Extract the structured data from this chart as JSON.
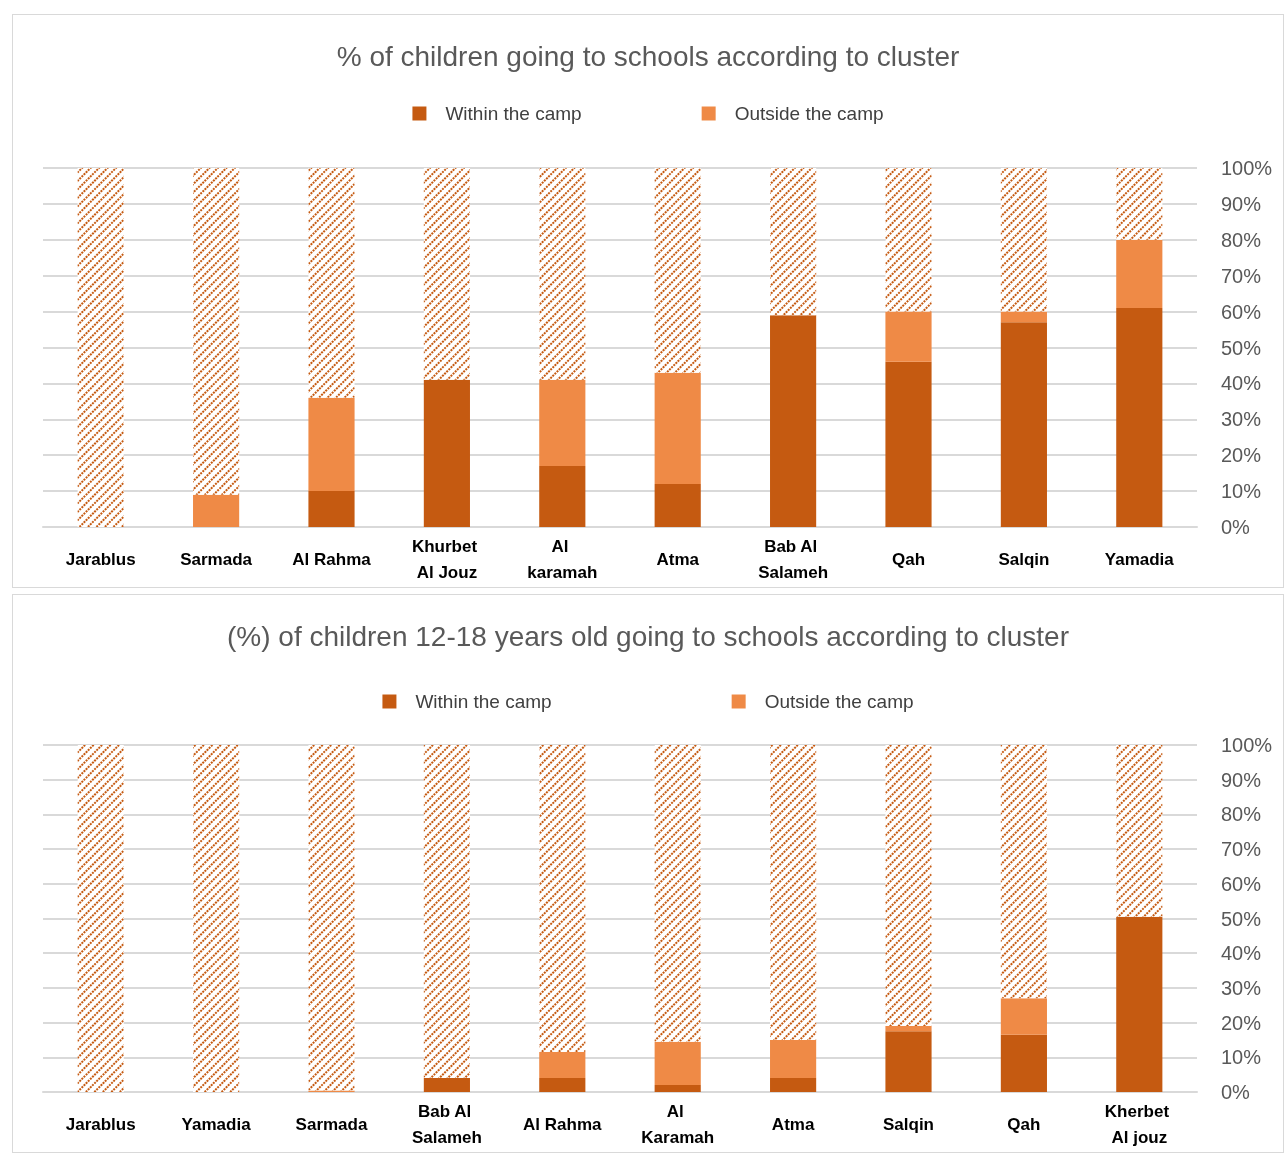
{
  "chart_data": [
    {
      "type": "bar",
      "title": "% of children going to schools according to cluster",
      "categories": [
        "Jarablus",
        "Sarmada",
        "Al Rahma",
        "Khurbet Al Jouz",
        "Al karamah",
        "Atma",
        "Bab Al Salameh",
        "Qah",
        "Salqin",
        "Yamadia"
      ],
      "series": [
        {
          "name": "Within the camp",
          "color": "#c55a11",
          "values": [
            0,
            0,
            10,
            41,
            17,
            12,
            59,
            46,
            57,
            61
          ]
        },
        {
          "name": "Outside the camp",
          "color": "#ef8a46",
          "values": [
            0,
            9,
            26,
            0,
            24,
            31,
            0,
            14,
            3,
            19
          ]
        },
        {
          "color": "#c55a11",
          "values": [
            100,
            91,
            64,
            59,
            59,
            57,
            41,
            40,
            40,
            20
          ]
        }
      ],
      "stacked": true,
      "ylim": [
        0,
        100
      ],
      "yticks": [
        {
          "value": 0,
          "label": "0%"
        },
        {
          "value": 10,
          "label": "10%"
        },
        {
          "value": 20,
          "label": "20%"
        },
        {
          "value": 30,
          "label": "30%"
        },
        {
          "value": 40,
          "label": "40%"
        },
        {
          "value": 50,
          "label": "50%"
        },
        {
          "value": 60,
          "label": "60%"
        },
        {
          "value": 70,
          "label": "70%"
        },
        {
          "value": 80,
          "label": "80%"
        },
        {
          "value": 90,
          "label": "90%"
        },
        {
          "value": 100,
          "label": "100%"
        }
      ],
      "grid": "y",
      "legend": "top"
    },
    {
      "type": "bar",
      "title": "(%) of children 12-18 years old going to schools according to cluster",
      "categories": [
        "Jarablus",
        "Yamadia",
        "Sarmada",
        "Bab Al Salameh",
        "Al Rahma",
        "Al Karamah",
        "Atma",
        "Salqin",
        "Qah",
        "Kherbet Al jouz"
      ],
      "series": [
        {
          "name": "Within the camp",
          "color": "#c55a11",
          "values": [
            0,
            0,
            0,
            4,
            4,
            2,
            4,
            17.5,
            16.5,
            50.5
          ]
        },
        {
          "name": "Outside the camp",
          "color": "#ef8a46",
          "values": [
            0,
            0,
            0.4,
            0,
            7.5,
            12.5,
            11,
            1.5,
            10.5,
            0
          ]
        },
        {
          "color": "#c55a11",
          "values": [
            100,
            100,
            99.6,
            96,
            88.5,
            85.5,
            85,
            81,
            73,
            49.5
          ]
        }
      ],
      "stacked": true,
      "ylim": [
        0,
        100
      ],
      "yticks": [
        {
          "value": 0,
          "label": "0%"
        },
        {
          "value": 10,
          "label": "10%"
        },
        {
          "value": 20,
          "label": "20%"
        },
        {
          "value": 30,
          "label": "30%"
        },
        {
          "value": 40,
          "label": "40%"
        },
        {
          "value": 50,
          "label": "50%"
        },
        {
          "value": 60,
          "label": "60%"
        },
        {
          "value": 70,
          "label": "70%"
        },
        {
          "value": 80,
          "label": "80%"
        },
        {
          "value": 90,
          "label": "90%"
        },
        {
          "value": 100,
          "label": "100%"
        }
      ],
      "grid": "y",
      "legend": "top"
    }
  ]
}
